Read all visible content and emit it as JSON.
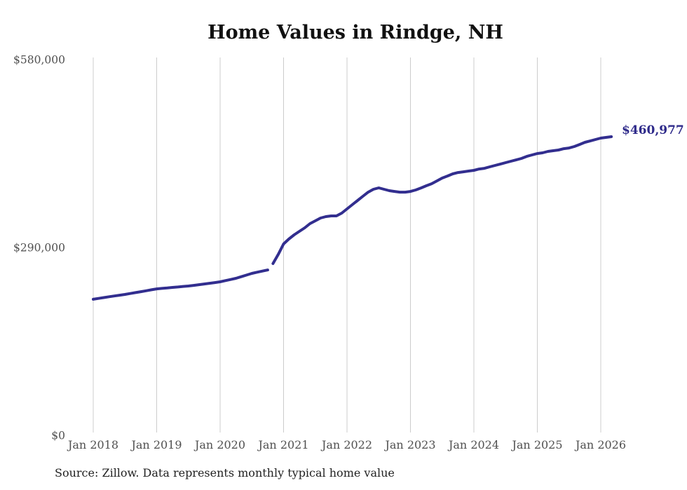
{
  "page": {
    "background": "#ffffff"
  },
  "chart_data": {
    "type": "line",
    "title": "Home Values in Rindge, NH",
    "source_note": "Source: Zillow. Data represents monthly typical home value",
    "series_name": "Monthly typical home value",
    "x_start_month": "2018-01",
    "frequency": "monthly",
    "x_tick_labels": [
      "Jan 2018",
      "Jan 2019",
      "Jan 2020",
      "Jan 2021",
      "Jan 2022",
      "Jan 2023",
      "Jan 2024",
      "Jan 2025",
      "Jan 2026"
    ],
    "y_tick_labels": [
      "$0",
      "$290,000",
      "$580,000"
    ],
    "y_tick_values": [
      0,
      290000,
      580000
    ],
    "ylim": [
      0,
      580000
    ],
    "grid": "vertical-only",
    "legend": "none",
    "line_break_after_month": "2020-10",
    "line_break_after_index": 33,
    "final_value": 460977,
    "final_value_label": "$460,977",
    "values": [
      210000,
      211300,
      212600,
      213900,
      215100,
      216300,
      217500,
      218900,
      220300,
      221700,
      223100,
      224600,
      226100,
      226800,
      227500,
      228300,
      229000,
      229800,
      230500,
      231500,
      232500,
      233600,
      234700,
      235800,
      237000,
      238800,
      240600,
      242400,
      244900,
      247400,
      250000,
      251800,
      253500,
      255300,
      265100,
      279400,
      295400,
      303000,
      309500,
      314900,
      320300,
      326800,
      331100,
      335400,
      337600,
      338700,
      338700,
      343000,
      349500,
      356000,
      362500,
      369000,
      375400,
      379800,
      382000,
      379800,
      377600,
      376500,
      375400,
      375400,
      376500,
      378700,
      381900,
      385200,
      388400,
      392700,
      397100,
      400300,
      403600,
      405700,
      406800,
      407900,
      409000,
      411100,
      412200,
      414400,
      416600,
      418700,
      420900,
      423100,
      425200,
      427400,
      430600,
      432800,
      435000,
      436100,
      438200,
      439300,
      440400,
      442500,
      443600,
      445800,
      449000,
      452300,
      454400,
      456600,
      458800,
      459900,
      460977
    ],
    "colors": {
      "line": "#322e8f",
      "grid": "#cccccc",
      "axis_label": "#505050",
      "title": "#111111",
      "annotation": "#2e2a8a",
      "source": "#222222"
    }
  }
}
